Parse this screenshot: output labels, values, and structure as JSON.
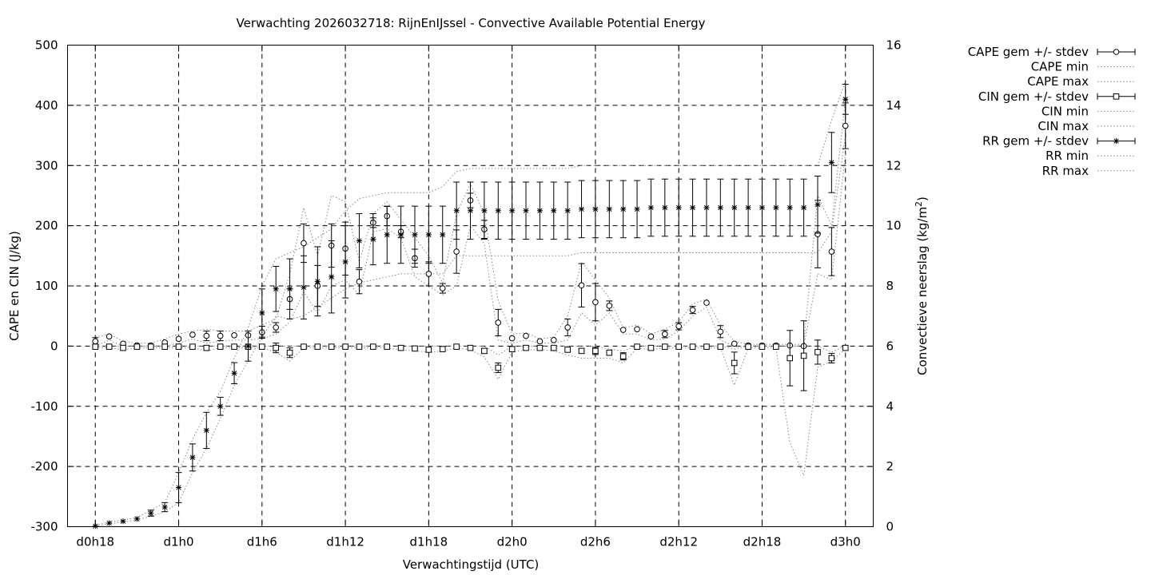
{
  "chart_data": {
    "type": "line",
    "title": "Verwachting 2026032718: RijnEnIJssel - Convective Available Potential Energy",
    "xlabel": "Verwachtingstijd (UTC)",
    "ylabel": "CAPE en CIN (J/kg)",
    "y2label_main": "Convectieve neerslag (kg/m",
    "y2label_sup": "2",
    "y2label_end": ")",
    "x_hours": [
      0,
      3,
      6,
      9,
      12,
      15,
      18,
      21,
      24,
      27,
      30,
      33,
      36,
      39,
      42,
      45,
      48,
      51,
      54,
      57,
      60,
      63,
      66,
      69,
      72,
      75,
      78,
      81,
      84,
      87,
      90,
      93,
      96,
      99,
      102,
      105,
      108,
      111,
      114,
      117,
      120,
      123,
      126,
      129,
      132,
      135,
      138,
      141,
      144,
      147,
      150,
      153,
      156,
      159,
      162
    ],
    "xlim": [
      -6,
      168
    ],
    "x_ticks": [
      {
        "h": 0,
        "label": "d0h18"
      },
      {
        "h": 18,
        "label": "d1h0"
      },
      {
        "h": 36,
        "label": "d1h6"
      },
      {
        "h": 54,
        "label": "d1h12"
      },
      {
        "h": 72,
        "label": "d1h18"
      },
      {
        "h": 90,
        "label": "d2h0"
      },
      {
        "h": 108,
        "label": "d2h6"
      },
      {
        "h": 126,
        "label": "d2h12"
      },
      {
        "h": 144,
        "label": "d2h18"
      },
      {
        "h": 162,
        "label": "d3h0"
      }
    ],
    "ylim": [
      -300,
      500
    ],
    "y_ticks": [
      -300,
      -200,
      -100,
      0,
      100,
      200,
      300,
      400,
      500
    ],
    "y2lim": [
      0,
      16
    ],
    "y2_ticks": [
      0,
      2,
      4,
      6,
      8,
      10,
      12,
      14,
      16
    ],
    "grid": true,
    "legend_position": "outside-right",
    "series": [
      {
        "name": "CAPE gem +/- stdev",
        "axis": "y",
        "marker": "circle",
        "values": [
          8,
          16,
          4,
          1,
          1,
          6,
          12,
          19,
          17,
          17,
          18,
          18,
          23,
          31,
          78,
          171,
          100,
          167,
          162,
          107,
          205,
          216,
          190,
          146,
          120,
          96,
          157,
          242,
          194,
          39,
          13,
          17,
          8,
          10,
          31,
          101,
          73,
          67,
          27,
          28,
          16,
          20,
          33,
          60,
          72,
          24,
          4,
          1,
          1,
          1,
          1,
          0,
          186,
          157,
          366
        ],
        "stdev": [
          6,
          0,
          0,
          0,
          0,
          0,
          0,
          0,
          8,
          8,
          0,
          0,
          10,
          8,
          17,
          32,
          34,
          36,
          44,
          20,
          8,
          16,
          10,
          15,
          20,
          8,
          36,
          12,
          15,
          22,
          0,
          0,
          0,
          0,
          14,
          36,
          31,
          8,
          0,
          0,
          0,
          6,
          6,
          6,
          0,
          10,
          0,
          0,
          0,
          0,
          0,
          0,
          56,
          40,
          38
        ]
      },
      {
        "name": "CAPE min",
        "axis": "y",
        "style": "dotted",
        "values": [
          0,
          10,
          0,
          0,
          0,
          0,
          5,
          12,
          5,
          8,
          10,
          10,
          12,
          20,
          40,
          90,
          55,
          100,
          110,
          85,
          190,
          195,
          180,
          115,
          100,
          85,
          100,
          200,
          170,
          10,
          5,
          10,
          5,
          5,
          10,
          55,
          35,
          55,
          20,
          20,
          10,
          12,
          25,
          50,
          65,
          10,
          0,
          0,
          0,
          0,
          0,
          0,
          120,
          110,
          320
        ]
      },
      {
        "name": "CAPE max",
        "axis": "y",
        "style": "dotted",
        "values": [
          15,
          20,
          8,
          5,
          5,
          12,
          20,
          25,
          28,
          25,
          25,
          25,
          35,
          45,
          120,
          230,
          150,
          250,
          240,
          140,
          220,
          240,
          210,
          180,
          150,
          105,
          220,
          270,
          220,
          75,
          20,
          22,
          12,
          15,
          50,
          140,
          110,
          80,
          30,
          35,
          20,
          28,
          40,
          70,
          78,
          35,
          8,
          3,
          3,
          3,
          3,
          3,
          250,
          200,
          410
        ]
      },
      {
        "name": "CIN gem +/- stdev",
        "axis": "y",
        "marker": "square",
        "values": [
          -1,
          -1,
          -3,
          -1,
          -1,
          -1,
          -1,
          -1,
          -3,
          -1,
          -1,
          -1,
          -1,
          -3,
          -11,
          -1,
          -1,
          -1,
          -1,
          -1,
          -1,
          -1,
          -3,
          -4,
          -6,
          -5,
          -1,
          -3,
          -8,
          -36,
          -5,
          -3,
          -3,
          -3,
          -6,
          -8,
          -8,
          -11,
          -17,
          -1,
          -3,
          -1,
          -1,
          -1,
          -1,
          -1,
          -28,
          -1,
          -1,
          -1,
          -20,
          -16,
          -10,
          -20,
          -3
        ],
        "stdev": [
          0,
          0,
          0,
          0,
          0,
          0,
          0,
          0,
          0,
          0,
          0,
          0,
          0,
          8,
          8,
          0,
          0,
          0,
          0,
          0,
          0,
          0,
          0,
          0,
          0,
          0,
          0,
          0,
          4,
          8,
          0,
          0,
          0,
          0,
          0,
          4,
          6,
          0,
          6,
          0,
          0,
          0,
          0,
          0,
          0,
          0,
          18,
          0,
          0,
          0,
          46,
          58,
          20,
          8,
          0
        ]
      },
      {
        "name": "CIN min",
        "axis": "y",
        "style": "dotted",
        "values": [
          -3,
          -3,
          -6,
          -3,
          -3,
          -3,
          -3,
          -3,
          -8,
          -3,
          -3,
          -3,
          -3,
          -10,
          -25,
          -3,
          -3,
          -3,
          -3,
          -3,
          -3,
          -3,
          -6,
          -8,
          -10,
          -8,
          -3,
          -6,
          -18,
          -55,
          -10,
          -6,
          -6,
          -8,
          -15,
          -20,
          -20,
          -20,
          -28,
          -3,
          -6,
          -3,
          -3,
          -3,
          -3,
          -3,
          -65,
          -3,
          -3,
          -3,
          -160,
          -215,
          -35,
          -25,
          -5
        ]
      },
      {
        "name": "CIN max",
        "axis": "y",
        "style": "dotted",
        "values": [
          0,
          0,
          0,
          0,
          0,
          0,
          0,
          0,
          0,
          0,
          0,
          0,
          0,
          0,
          0,
          0,
          0,
          0,
          0,
          0,
          0,
          0,
          0,
          0,
          0,
          0,
          0,
          0,
          0,
          -15,
          0,
          0,
          0,
          0,
          0,
          0,
          0,
          -5,
          -8,
          0,
          0,
          0,
          0,
          0,
          0,
          0,
          -5,
          0,
          0,
          0,
          0,
          0,
          0,
          -10,
          0
        ]
      },
      {
        "name": "RR gem +/- stdev",
        "axis": "y2",
        "marker": "star",
        "values": [
          0.02,
          0.12,
          0.18,
          0.26,
          0.45,
          0.65,
          1.3,
          2.3,
          3.2,
          4.0,
          5.1,
          6.0,
          7.1,
          7.9,
          7.9,
          7.95,
          8.15,
          8.3,
          8.8,
          9.5,
          9.55,
          9.7,
          9.7,
          9.7,
          9.7,
          9.7,
          10.5,
          10.5,
          10.5,
          10.5,
          10.5,
          10.5,
          10.5,
          10.5,
          10.5,
          10.55,
          10.55,
          10.55,
          10.55,
          10.55,
          10.6,
          10.6,
          10.6,
          10.6,
          10.6,
          10.6,
          10.6,
          10.6,
          10.6,
          10.6,
          10.6,
          10.6,
          10.7,
          12.1,
          14.2
        ],
        "stdev": [
          0,
          0,
          0,
          0,
          0.1,
          0.15,
          0.5,
          0.45,
          0.6,
          0.3,
          0.35,
          0.5,
          0.8,
          0.75,
          1.0,
          1.05,
          1.15,
          1.2,
          1.2,
          0.9,
          0.85,
          0.95,
          0.95,
          0.95,
          0.95,
          0.95,
          0.95,
          0.95,
          0.95,
          0.95,
          0.95,
          0.95,
          0.95,
          0.95,
          0.95,
          0.95,
          0.95,
          0.95,
          0.95,
          0.95,
          0.95,
          0.95,
          0.95,
          0.95,
          0.95,
          0.95,
          0.95,
          0.95,
          0.95,
          0.95,
          0.95,
          0.95,
          0.95,
          1.0,
          0.5
        ]
      },
      {
        "name": "RR min",
        "axis": "y2",
        "style": "dotted",
        "values": [
          0,
          0.1,
          0.15,
          0.22,
          0.35,
          0.5,
          0.8,
          1.8,
          2.6,
          3.6,
          4.7,
          5.5,
          6.3,
          7.0,
          6.9,
          7.0,
          7.3,
          7.6,
          7.9,
          8.1,
          8.2,
          8.3,
          8.4,
          8.4,
          8.4,
          8.4,
          9.0,
          9.0,
          9.0,
          9.0,
          9.0,
          9.0,
          9.0,
          9.0,
          9.0,
          9.1,
          9.1,
          9.1,
          9.1,
          9.1,
          9.1,
          9.1,
          9.1,
          9.1,
          9.1,
          9.1,
          9.1,
          9.1,
          9.1,
          9.1,
          9.1,
          9.1,
          9.1,
          9.8,
          13.0
        ]
      },
      {
        "name": "RR max",
        "axis": "y2",
        "style": "dotted",
        "values": [
          0.05,
          0.15,
          0.22,
          0.3,
          0.55,
          0.8,
          1.8,
          2.9,
          3.8,
          4.5,
          5.6,
          6.6,
          8.0,
          8.9,
          9.1,
          9.3,
          9.6,
          9.9,
          10.5,
          10.9,
          11.0,
          11.1,
          11.1,
          11.1,
          11.1,
          11.3,
          11.8,
          11.9,
          11.9,
          11.9,
          11.9,
          11.9,
          11.9,
          11.9,
          11.9,
          12.0,
          12.0,
          12.0,
          12.0,
          12.0,
          12.0,
          12.0,
          12.0,
          12.0,
          12.0,
          12.0,
          12.0,
          12.0,
          12.0,
          12.0,
          12.0,
          12.0,
          12.0,
          13.5,
          14.8
        ]
      }
    ]
  }
}
